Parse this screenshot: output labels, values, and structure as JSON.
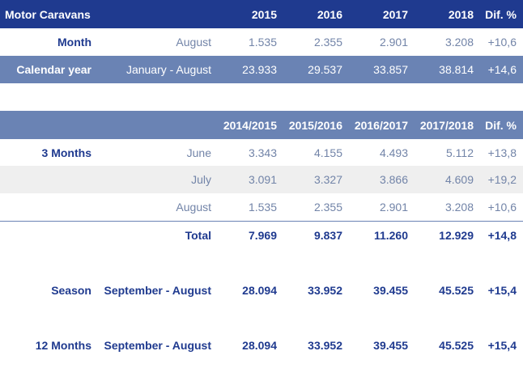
{
  "table1": {
    "headers": [
      "Motor Caravans",
      "",
      "2015",
      "2016",
      "2017",
      "2018",
      "Dif. %"
    ],
    "rows": [
      {
        "label": "Month",
        "period": "August",
        "values": [
          "1.535",
          "2.355",
          "2.901",
          "3.208"
        ],
        "dif": "+10,6"
      },
      {
        "label": "Calendar year",
        "period": "January - August",
        "values": [
          "23.933",
          "29.537",
          "33.857",
          "38.814"
        ],
        "dif": "+14,6"
      }
    ]
  },
  "table2": {
    "headers": [
      "",
      "",
      "2014/2015",
      "2015/2016",
      "2016/2017",
      "2017/2018",
      "Dif. %"
    ],
    "rows": [
      {
        "label": "3 Months",
        "period": "June",
        "values": [
          "3.343",
          "4.155",
          "4.493",
          "5.112"
        ],
        "dif": "+13,8"
      },
      {
        "label": "",
        "period": "July",
        "values": [
          "3.091",
          "3.327",
          "3.866",
          "4.609"
        ],
        "dif": "+19,2"
      },
      {
        "label": "",
        "period": "August",
        "values": [
          "1.535",
          "2.355",
          "2.901",
          "3.208"
        ],
        "dif": "+10,6"
      },
      {
        "label": "",
        "period": "Total",
        "values": [
          "7.969",
          "9.837",
          "11.260",
          "12.929"
        ],
        "dif": "+14,8"
      },
      {
        "label": "Season",
        "period": "September - August",
        "values": [
          "28.094",
          "33.952",
          "39.455",
          "45.525"
        ],
        "dif": "+15,4"
      },
      {
        "label": "12 Months",
        "period": "September - August",
        "values": [
          "28.094",
          "33.952",
          "39.455",
          "45.525"
        ],
        "dif": "+15,4"
      }
    ]
  },
  "colors": {
    "header_dark": "#1f3a8f",
    "header_light": "#6a83b4",
    "row_gray": "#efefef",
    "text_navy": "#1f3a8f",
    "text_muted": "#7284a8"
  }
}
